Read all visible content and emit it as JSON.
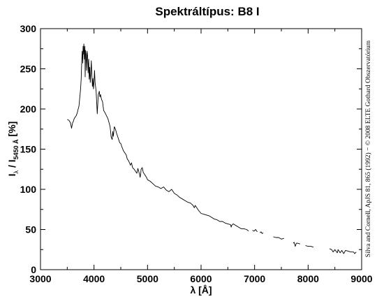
{
  "chart_data": {
    "type": "line",
    "title": "Spektráltípus: B8 I",
    "xlabel": "λ [Å]",
    "ylabel": {
      "main": "I",
      "sub1": "λ",
      "sep": " / I",
      "sub2": "5450 Å",
      "unit": " [%]"
    },
    "xlim": [
      3000,
      9000
    ],
    "ylim": [
      0,
      300
    ],
    "xticks": [
      "3000",
      "4000",
      "5000",
      "6000",
      "7000",
      "8000",
      "9000"
    ],
    "yticks": [
      "0",
      "50",
      "100",
      "150",
      "200",
      "250",
      "300"
    ],
    "grid": false,
    "credit": "Silva and Cornell, ApJS 81, 865 (1992) − © 2008 ELTE Gothard Obszervatórium",
    "color": "#000000",
    "series": [
      {
        "x": [
          3500,
          3530,
          3560,
          3580,
          3600,
          3610,
          3630,
          3650,
          3670,
          3690,
          3700,
          3720,
          3730,
          3740,
          3750,
          3760,
          3770,
          3780,
          3790,
          3795,
          3800,
          3810,
          3820,
          3830,
          3835,
          3840,
          3850,
          3860,
          3870,
          3880,
          3890,
          3900,
          3910,
          3920,
          3930,
          3940,
          3950,
          3960,
          3970,
          3980,
          3990,
          4000,
          4010,
          4020,
          4040,
          4060,
          4080,
          4100,
          4110,
          4120,
          4140,
          4160,
          4180,
          4200,
          4230,
          4260,
          4300,
          4320,
          4340,
          4350,
          4360,
          4380,
          4400,
          4420,
          4450,
          4480,
          4500,
          4520,
          4550,
          4580,
          4600,
          4620,
          4650,
          4680,
          4700,
          4720,
          4750,
          4780,
          4800,
          4820,
          4850,
          4861,
          4870,
          4880,
          4900,
          4920,
          4950,
          4980,
          5000,
          5050,
          5100,
          5150,
          5200,
          5250,
          5300,
          5350,
          5400,
          5450,
          5500,
          5550,
          5600,
          5650,
          5700,
          5750,
          5800,
          5850,
          5875,
          5890,
          5900,
          5950,
          6000,
          6050,
          6100,
          6150,
          6200,
          6250,
          6300,
          6350,
          6400,
          6450,
          6500,
          6550,
          6563,
          6570,
          6600,
          6650,
          6700,
          6750,
          6800,
          6850,
          6890
        ],
        "y": [
          187,
          186,
          183,
          176,
          183,
          184,
          188,
          190,
          192,
          196,
          199,
          204,
          212,
          218,
          226,
          238,
          258,
          272,
          257,
          278,
          268,
          281,
          262,
          278,
          240,
          273,
          268,
          248,
          272,
          266,
          245,
          262,
          237,
          252,
          233,
          246,
          260,
          242,
          228,
          238,
          225,
          234,
          248,
          233,
          222,
          194,
          218,
          222,
          215,
          218,
          212,
          209,
          198,
          196,
          192,
          188,
          178,
          165,
          162,
          172,
          166,
          178,
          175,
          170,
          164,
          158,
          157,
          153,
          148,
          145,
          143,
          138,
          135,
          130,
          133,
          127,
          125,
          122,
          120,
          126,
          119,
          115,
          118,
          125,
          127,
          121,
          118,
          115,
          112,
          110,
          107,
          104,
          103,
          101,
          103,
          99,
          97,
          100,
          95,
          93,
          90,
          88,
          86,
          84,
          83,
          80,
          77,
          80,
          79,
          74,
          70,
          69,
          68,
          67,
          65,
          63,
          62,
          60,
          60,
          58,
          57,
          56,
          53,
          55,
          57,
          55,
          53,
          51,
          51,
          50,
          48
        ]
      },
      {
        "x": [
          6960,
          6990,
          7020,
          7050
        ],
        "y": [
          49,
          48,
          50,
          47
        ]
      },
      {
        "x": [
          7100,
          7120,
          7140,
          7160
        ],
        "y": [
          46,
          47,
          45,
          46
        ]
      },
      {
        "x": [
          7350,
          7400,
          7450,
          7500,
          7550
        ],
        "y": [
          41,
          40,
          40,
          38,
          39
        ]
      },
      {
        "x": [
          7720,
          7740,
          7760,
          7780,
          7800,
          7850
        ],
        "y": [
          33,
          34,
          29,
          33,
          33,
          32
        ]
      },
      {
        "x": [
          7950,
          8000,
          8050,
          8100
        ],
        "y": [
          30,
          29,
          29,
          28
        ]
      },
      {
        "x": [
          8400,
          8440,
          8467,
          8500,
          8545,
          8560,
          8598,
          8630,
          8665,
          8700,
          8750,
          8800,
          8850,
          8870,
          8900
        ],
        "y": [
          26,
          25,
          22,
          25,
          21,
          25,
          21,
          24,
          20,
          24,
          23,
          22,
          22,
          20,
          22
        ]
      }
    ]
  }
}
